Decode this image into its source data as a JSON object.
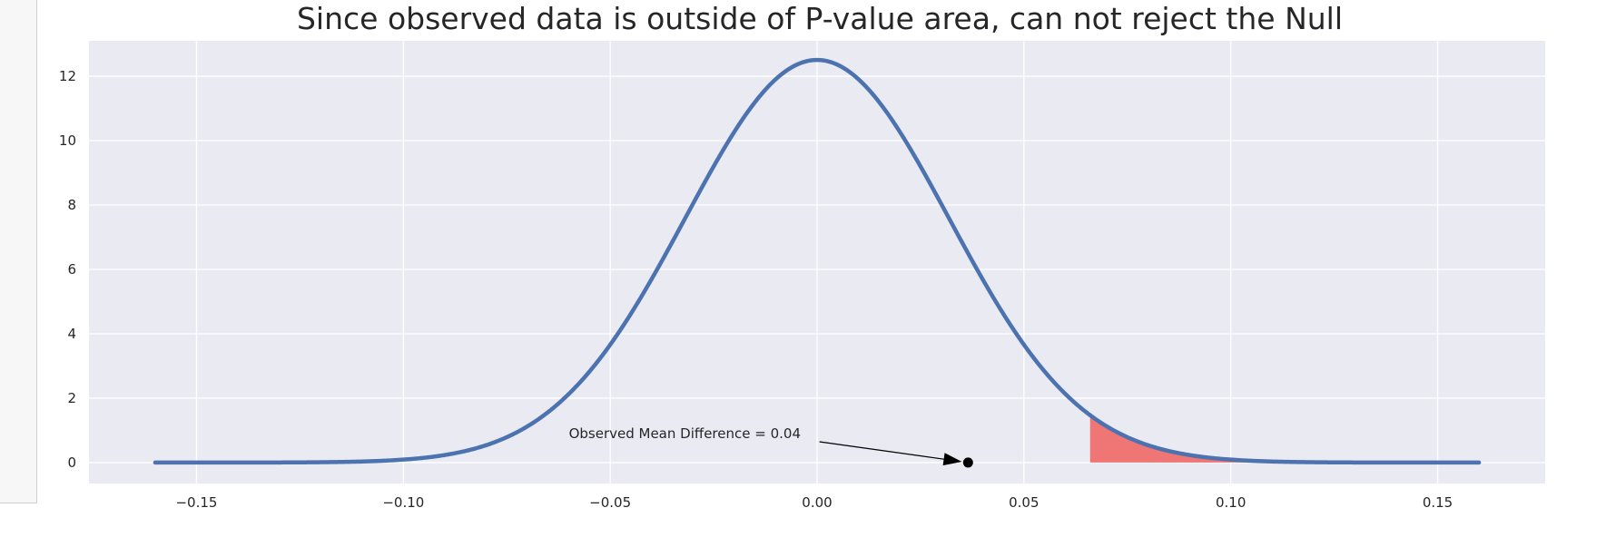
{
  "chart_data": {
    "type": "line",
    "title": "Since observed data is outside of P-value area, can not reject the Null",
    "xlabel": "",
    "ylabel": "",
    "xlim": [
      -0.176,
      0.176
    ],
    "ylim": [
      -0.65,
      13.1
    ],
    "x_ticks": [
      -0.15,
      -0.1,
      -0.05,
      0.0,
      0.05,
      0.1,
      0.15
    ],
    "x_tick_labels": [
      "−0.15",
      "−0.10",
      "−0.05",
      "0.00",
      "0.05",
      "0.10",
      "0.15"
    ],
    "y_ticks": [
      0,
      2,
      4,
      6,
      8,
      10,
      12
    ],
    "y_tick_labels": [
      "0",
      "2",
      "4",
      "6",
      "8",
      "10",
      "12"
    ],
    "grid": true,
    "background": "#eaeaf2",
    "series": [
      {
        "line_color": "#4c72b0",
        "distribution": "normal",
        "mean": 0.0,
        "std": 0.0319,
        "x_range": [
          -0.16,
          0.16
        ]
      }
    ],
    "shaded_region": {
      "x_start": 0.066,
      "x_end": 0.16,
      "color": "#f07575"
    },
    "annotation": {
      "text": "Observed Mean Difference = 0.04",
      "point_x": 0.0365,
      "point_y": 0.0,
      "text_x": -0.06,
      "text_y": 0.9
    }
  }
}
